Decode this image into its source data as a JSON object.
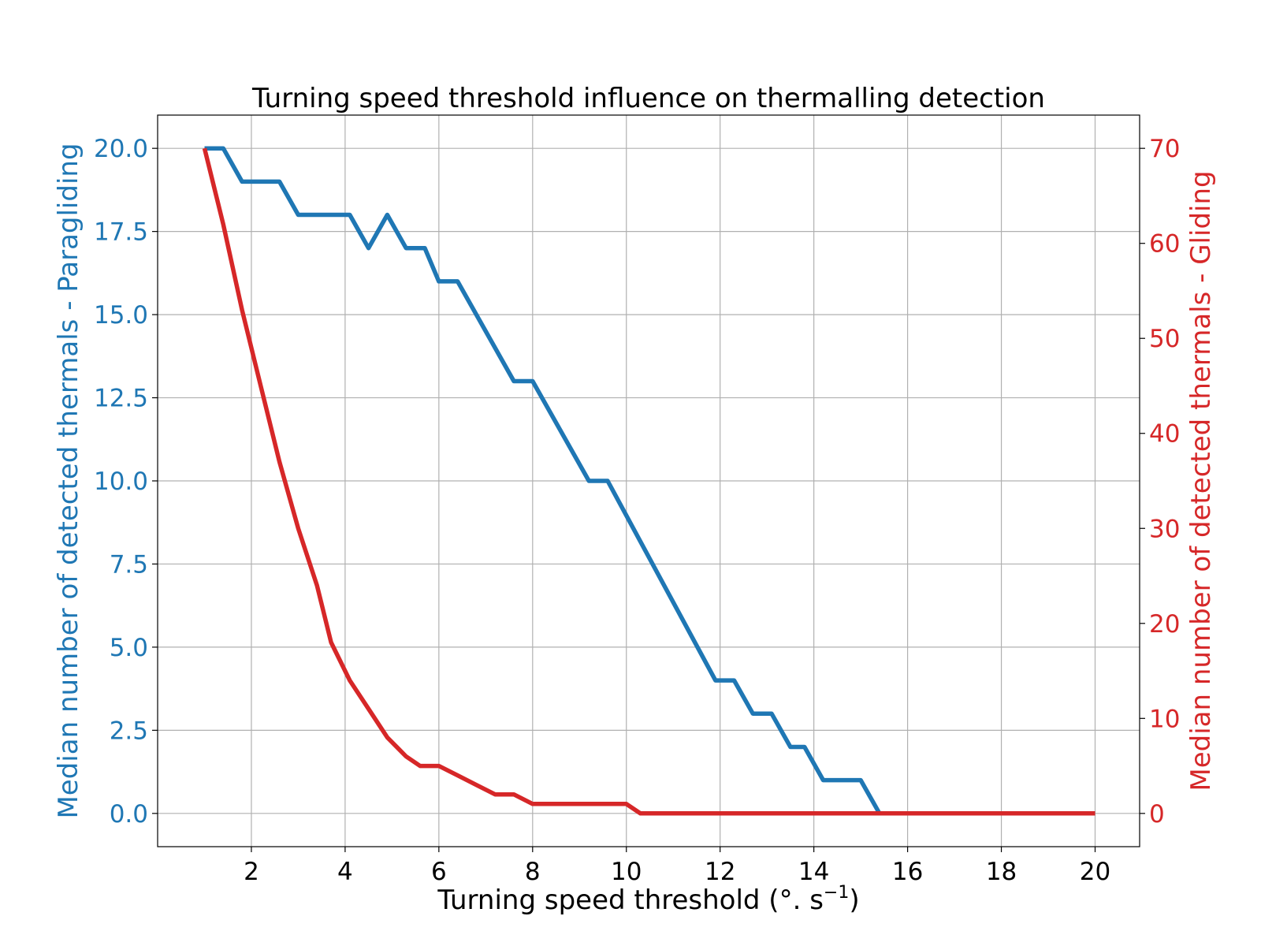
{
  "chart_data": {
    "type": "line",
    "title": "Turning speed threshold influence on thermalling detection",
    "xlabel": "Turning speed threshold (°. s",
    "xlabel_exponent": "−1",
    "xlabel_suffix": ")",
    "xlim": [
      0.0,
      20.95
    ],
    "xticks": [
      2,
      4,
      6,
      8,
      10,
      12,
      14,
      16,
      18,
      20
    ],
    "xtick_labels": [
      "2",
      "4",
      "6",
      "8",
      "10",
      "12",
      "14",
      "16",
      "18",
      "20"
    ],
    "grid": true,
    "y_left": {
      "label": "Median number of detected thermals - Paragliding",
      "color": "#1f77b4",
      "ylim": [
        -1.0,
        21.0
      ],
      "ticks": [
        0.0,
        2.5,
        5.0,
        7.5,
        10.0,
        12.5,
        15.0,
        17.5,
        20.0
      ],
      "tick_labels": [
        "0.0",
        "2.5",
        "5.0",
        "7.5",
        "10.0",
        "12.5",
        "15.0",
        "17.5",
        "20.0"
      ]
    },
    "y_right": {
      "label": "Median number of detected thermals - Gliding",
      "color": "#d62728",
      "ylim": [
        -3.5,
        73.5
      ],
      "ticks": [
        0,
        10,
        20,
        30,
        40,
        50,
        60,
        70
      ],
      "tick_labels": [
        "0",
        "10",
        "20",
        "30",
        "40",
        "50",
        "60",
        "70"
      ]
    },
    "series": [
      {
        "axis": "left",
        "color": "#1f77b4",
        "x": [
          1.0,
          1.4,
          1.8,
          2.2,
          2.6,
          3.0,
          3.4,
          3.8,
          4.1,
          4.5,
          4.9,
          5.3,
          5.7,
          6.0,
          6.4,
          7.6,
          8.0,
          9.2,
          9.6,
          11.9,
          12.3,
          12.7,
          13.1,
          13.5,
          13.8,
          14.2,
          14.6,
          15.0,
          15.4,
          20.0
        ],
        "y": [
          20,
          20,
          19,
          19,
          19,
          18,
          18,
          18,
          18,
          17,
          18,
          17,
          17,
          16,
          16,
          13,
          13,
          10,
          10,
          4,
          4,
          3,
          3,
          2,
          2,
          1,
          1,
          1,
          0,
          0
        ]
      },
      {
        "axis": "right",
        "color": "#d62728",
        "x": [
          1.0,
          1.4,
          1.8,
          2.2,
          2.6,
          3.0,
          3.4,
          3.7,
          4.1,
          4.5,
          4.9,
          5.3,
          5.6,
          6.0,
          6.4,
          6.8,
          7.2,
          7.6,
          8.0,
          8.4,
          8.8,
          9.2,
          9.6,
          10.0,
          10.3,
          10.7,
          20.0
        ],
        "y": [
          70,
          62,
          53,
          45,
          37,
          30,
          24,
          18,
          14,
          11,
          8,
          6,
          5,
          5,
          4,
          3,
          2,
          2,
          1,
          1,
          1,
          1,
          1,
          1,
          0,
          0,
          0
        ]
      }
    ]
  }
}
